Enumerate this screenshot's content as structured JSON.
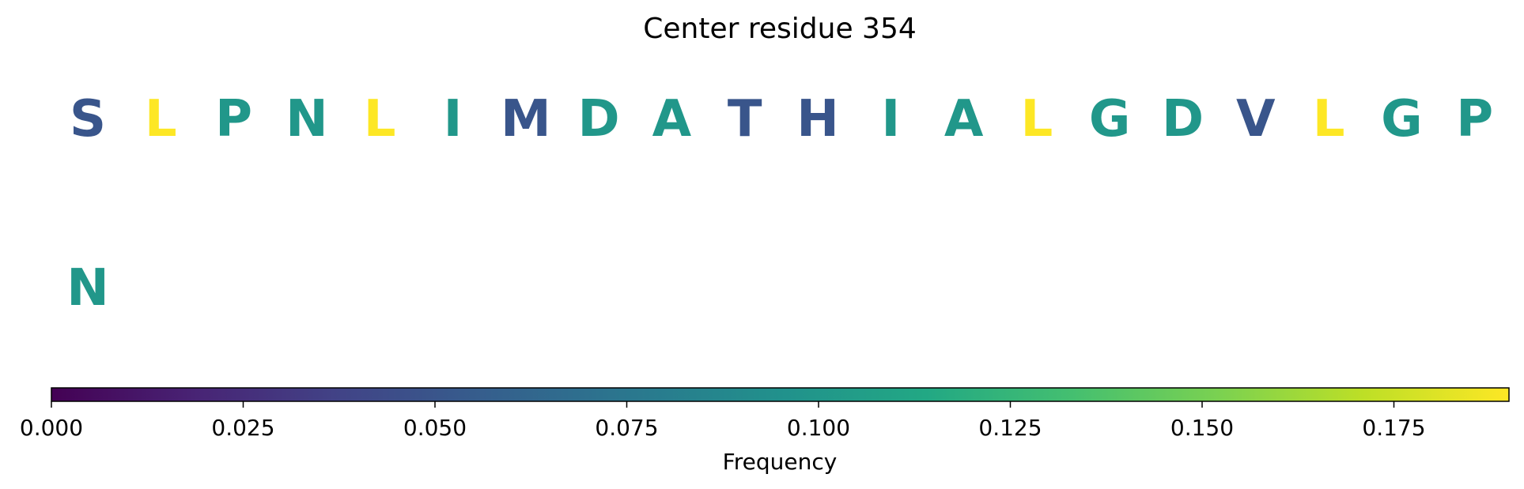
{
  "chart_data": {
    "type": "heatmap",
    "title": "Center residue 354",
    "rows": [
      {
        "residues": [
          {
            "letter": "S",
            "value": 0.05
          },
          {
            "letter": "L",
            "value": 0.19
          },
          {
            "letter": "P",
            "value": 0.1
          },
          {
            "letter": "N",
            "value": 0.1
          },
          {
            "letter": "L",
            "value": 0.19
          },
          {
            "letter": "I",
            "value": 0.1
          },
          {
            "letter": "M",
            "value": 0.05
          },
          {
            "letter": "D",
            "value": 0.1
          },
          {
            "letter": "A",
            "value": 0.1
          },
          {
            "letter": "T",
            "value": 0.05
          },
          {
            "letter": "H",
            "value": 0.05
          },
          {
            "letter": "I",
            "value": 0.1
          },
          {
            "letter": "A",
            "value": 0.1
          },
          {
            "letter": "L",
            "value": 0.19
          },
          {
            "letter": "G",
            "value": 0.1
          },
          {
            "letter": "D",
            "value": 0.1
          },
          {
            "letter": "V",
            "value": 0.05
          },
          {
            "letter": "L",
            "value": 0.19
          },
          {
            "letter": "G",
            "value": 0.1
          },
          {
            "letter": "P",
            "value": 0.1
          }
        ]
      },
      {
        "residues": [
          {
            "letter": "N",
            "value": 0.1
          }
        ]
      }
    ],
    "colorbar": {
      "label": "Frequency",
      "colormap": "viridis",
      "range": [
        0,
        0.19
      ],
      "ticks": [
        "0.000",
        "0.025",
        "0.050",
        "0.075",
        "0.100",
        "0.125",
        "0.150",
        "0.175"
      ]
    }
  }
}
